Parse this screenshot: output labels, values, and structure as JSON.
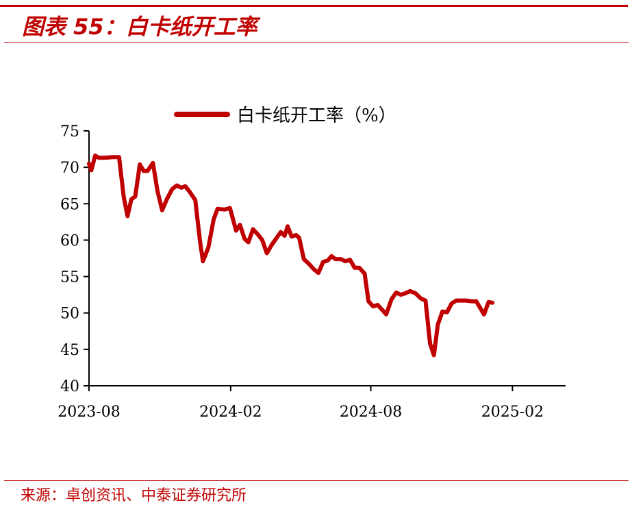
{
  "figure": {
    "title": "图表 55：白卡纸开工率",
    "source": "来源：卓创资讯、中泰证券研究所"
  },
  "colors": {
    "accent": "#c00000",
    "axis": "#000000"
  },
  "chart_data": {
    "type": "line",
    "title": "",
    "xlabel": "",
    "ylabel": "",
    "ylim": [
      40,
      75
    ],
    "yticks": [
      40,
      45,
      50,
      55,
      60,
      65,
      70,
      75
    ],
    "xticks": [
      "2023-08",
      "2024-02",
      "2024-08",
      "2025-02"
    ],
    "xlim": [
      "2023-08-01",
      "2025-04-11"
    ],
    "grid": false,
    "legend": "top-center",
    "series": [
      {
        "name": "白卡纸开工率（%）",
        "color": "#c00000",
        "points": [
          [
            "2023-08-01",
            70.5
          ],
          [
            "2023-08-04",
            69.6
          ],
          [
            "2023-08-09",
            71.6
          ],
          [
            "2023-08-14",
            71.3
          ],
          [
            "2023-08-22",
            71.3
          ],
          [
            "2023-09-01",
            71.4
          ],
          [
            "2023-09-09",
            71.4
          ],
          [
            "2023-09-15",
            66.0
          ],
          [
            "2023-09-20",
            63.3
          ],
          [
            "2023-09-25",
            65.6
          ],
          [
            "2023-09-30",
            66.0
          ],
          [
            "2023-10-06",
            70.4
          ],
          [
            "2023-10-11",
            69.5
          ],
          [
            "2023-10-16",
            69.5
          ],
          [
            "2023-10-23",
            70.6
          ],
          [
            "2023-10-29",
            66.7
          ],
          [
            "2023-11-04",
            64.1
          ],
          [
            "2023-11-10",
            65.6
          ],
          [
            "2023-11-17",
            67.0
          ],
          [
            "2023-11-23",
            67.5
          ],
          [
            "2023-11-29",
            67.2
          ],
          [
            "2023-12-04",
            67.4
          ],
          [
            "2023-12-10",
            66.6
          ],
          [
            "2023-12-17",
            65.5
          ],
          [
            "2023-12-23",
            60.0
          ],
          [
            "2023-12-27",
            57.1
          ],
          [
            "2024-01-03",
            59.0
          ],
          [
            "2024-01-10",
            62.9
          ],
          [
            "2024-01-15",
            64.3
          ],
          [
            "2024-01-24",
            64.2
          ],
          [
            "2024-01-31",
            64.4
          ],
          [
            "2024-02-08",
            61.3
          ],
          [
            "2024-02-13",
            62.1
          ],
          [
            "2024-02-19",
            60.2
          ],
          [
            "2024-02-24",
            59.7
          ],
          [
            "2024-03-01",
            61.5
          ],
          [
            "2024-03-08",
            60.7
          ],
          [
            "2024-03-13",
            60.0
          ],
          [
            "2024-03-19",
            58.2
          ],
          [
            "2024-03-25",
            59.3
          ],
          [
            "2024-03-31",
            60.2
          ],
          [
            "2024-04-06",
            61.1
          ],
          [
            "2024-04-11",
            60.6
          ],
          [
            "2024-04-15",
            61.9
          ],
          [
            "2024-04-20",
            60.5
          ],
          [
            "2024-04-26",
            60.7
          ],
          [
            "2024-04-30",
            60.3
          ],
          [
            "2024-05-06",
            57.4
          ],
          [
            "2024-05-12",
            56.8
          ],
          [
            "2024-05-19",
            56.0
          ],
          [
            "2024-05-25",
            55.5
          ],
          [
            "2024-05-31",
            57.0
          ],
          [
            "2024-06-06",
            57.2
          ],
          [
            "2024-06-11",
            57.8
          ],
          [
            "2024-06-16",
            57.4
          ],
          [
            "2024-06-23",
            57.4
          ],
          [
            "2024-06-29",
            57.1
          ],
          [
            "2024-07-05",
            57.3
          ],
          [
            "2024-07-11",
            56.2
          ],
          [
            "2024-07-17",
            56.2
          ],
          [
            "2024-07-24",
            55.4
          ],
          [
            "2024-07-29",
            51.6
          ],
          [
            "2024-08-04",
            50.9
          ],
          [
            "2024-08-10",
            51.1
          ],
          [
            "2024-08-16",
            50.4
          ],
          [
            "2024-08-21",
            49.8
          ],
          [
            "2024-08-28",
            51.9
          ],
          [
            "2024-09-03",
            52.8
          ],
          [
            "2024-09-09",
            52.5
          ],
          [
            "2024-09-15",
            52.7
          ],
          [
            "2024-09-21",
            53.0
          ],
          [
            "2024-09-28",
            52.7
          ],
          [
            "2024-10-05",
            52.0
          ],
          [
            "2024-10-11",
            51.7
          ],
          [
            "2024-10-17",
            45.8
          ],
          [
            "2024-10-22",
            44.2
          ],
          [
            "2024-10-27",
            48.4
          ],
          [
            "2024-11-02",
            50.2
          ],
          [
            "2024-11-08",
            50.1
          ],
          [
            "2024-11-14",
            51.3
          ],
          [
            "2024-11-20",
            51.7
          ],
          [
            "2024-11-27",
            51.7
          ],
          [
            "2024-12-03",
            51.7
          ],
          [
            "2024-12-10",
            51.6
          ],
          [
            "2024-12-16",
            51.6
          ],
          [
            "2024-12-21",
            50.7
          ],
          [
            "2024-12-26",
            49.8
          ],
          [
            "2025-01-01",
            51.5
          ],
          [
            "2025-01-06",
            51.4
          ]
        ]
      }
    ]
  }
}
